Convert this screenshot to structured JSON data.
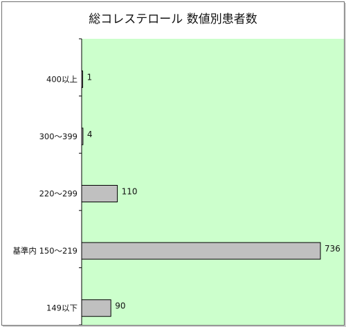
{
  "chart_data": {
    "type": "bar",
    "orientation": "horizontal",
    "title": "総コレステロール 数値別患者数",
    "categories": [
      "400以上",
      "300～399",
      "220～299",
      "基準内 150～219",
      "149以下"
    ],
    "values": [
      1,
      4,
      110,
      736,
      90
    ],
    "data_labels": [
      "1",
      "4",
      "110",
      "736",
      "90"
    ],
    "xlim": [
      0,
      750
    ],
    "grid": false,
    "legend": "none",
    "colors": {
      "plot_background": "#ccffcc",
      "bar_fill": "#c0c0c0",
      "bar_stroke": "#000000"
    }
  }
}
